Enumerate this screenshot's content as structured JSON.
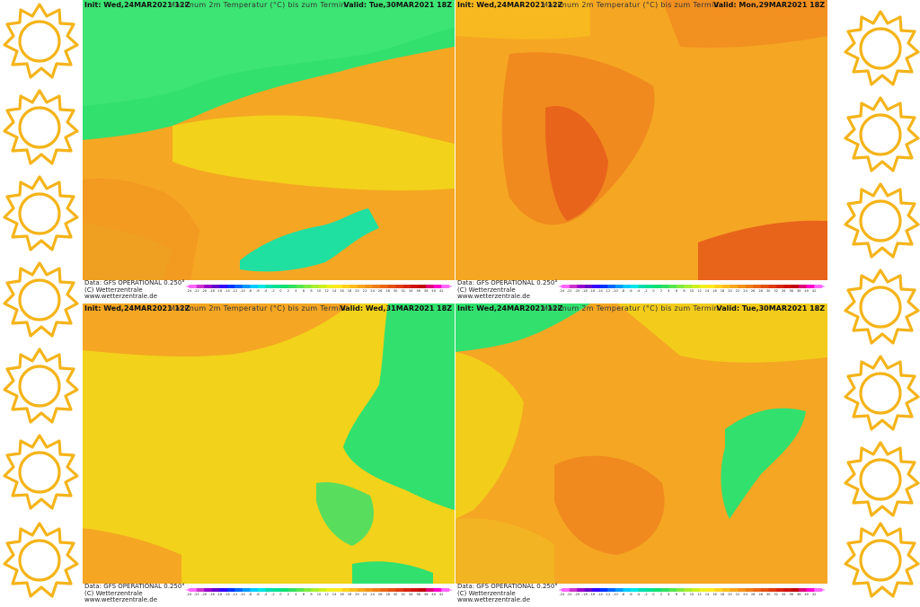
{
  "panels": [
    {
      "init": "Init: Wed,24MAR2021 12Z",
      "title": "Maximum 2m Temperatur (°C) bis zum Termin",
      "valid": "Valid: Tue,30MAR2021 18Z",
      "data_line": "Data: GFS OPERATIONAL 0.250°",
      "credit": "(C) Wetterzentrale",
      "url": "www.wetterzentrale.de",
      "region": "western-central-europe"
    },
    {
      "init": "Init: Wed,24MAR2021 12Z",
      "title": "Maximum 2m Temperatur (°C) bis zum Termin",
      "valid": "Valid: Mon,29MAR2021 18Z",
      "data_line": "Data: GFS OPERATIONAL 0.250°",
      "credit": "(C) Wetterzentrale",
      "url": "www.wetterzentrale.de",
      "region": "iberian-peninsula"
    },
    {
      "init": "Init: Wed,24MAR2021 12Z",
      "title": "Maximum 2m Temperatur (°C) bis zum Termin",
      "valid": "Valid: Wed,31MAR2021 18Z",
      "data_line": "Data: GFS OPERATIONAL 0.250°",
      "credit": "(C) Wetterzentrale",
      "url": "www.wetterzentrale.de",
      "region": "germany-benelux"
    },
    {
      "init": "Init: Wed,24MAR2021 12Z",
      "title": "Maximum 2m Temperatur (°C) bis zum Termin",
      "valid": "Valid: Tue,30MAR2021 18Z",
      "data_line": "Data: GFS OPERATIONAL 0.250°",
      "credit": "(C) Wetterzentrale",
      "url": "www.wetterzentrale.de",
      "region": "france"
    }
  ],
  "scale_labels": [
    "-24",
    "-22",
    "-20",
    "-18",
    "-16",
    "-14",
    "-12",
    "-10",
    "-8",
    "-6",
    "-4",
    "-2",
    "0",
    "2",
    "4",
    "6",
    "8",
    "10",
    "12",
    "14",
    "16",
    "18",
    "20",
    "22",
    "24",
    "26",
    "28",
    "30",
    "32",
    "34",
    "36",
    "38",
    "40",
    "42"
  ],
  "colors": {
    "sun_fill": "#ffffff",
    "sun_stroke": "#f4b41a",
    "warm": "#f5a623",
    "hot": "#e8641b",
    "mild": "#f2d21a",
    "cool": "#32e06e",
    "cold": "#1fcf9a"
  }
}
